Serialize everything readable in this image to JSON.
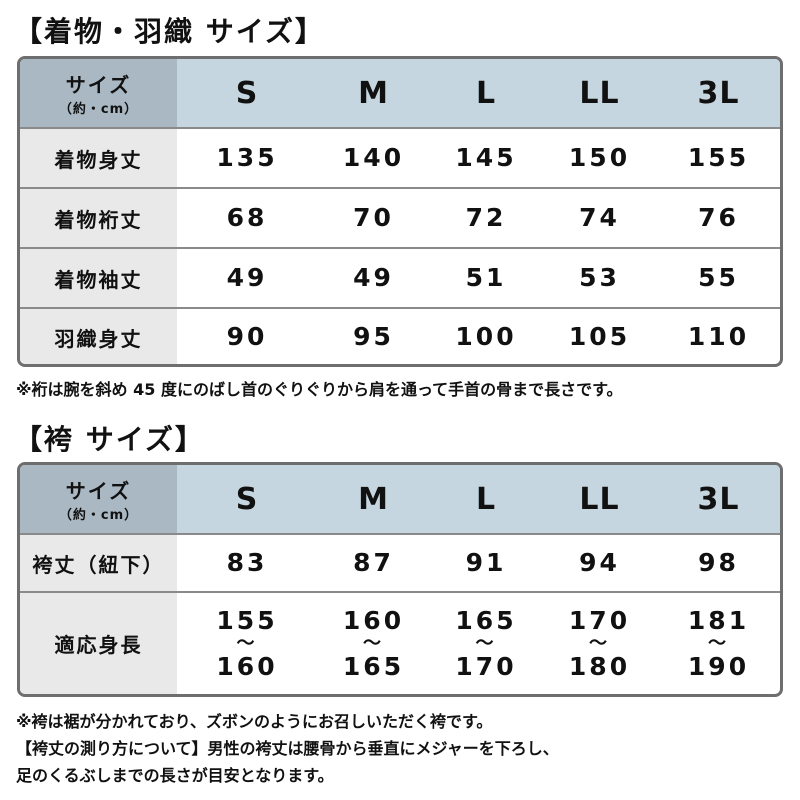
{
  "kimono": {
    "title": "【着物・羽織 サイズ】",
    "header": {
      "label": "サイズ",
      "unit": "（約・cm）",
      "sizes": [
        "S",
        "M",
        "L",
        "LL",
        "3L"
      ]
    },
    "rows": [
      {
        "label": "着物身丈",
        "values": [
          "135",
          "140",
          "145",
          "150",
          "155"
        ]
      },
      {
        "label": "着物裄丈",
        "values": [
          "68",
          "70",
          "72",
          "74",
          "76"
        ]
      },
      {
        "label": "着物袖丈",
        "values": [
          "49",
          "49",
          "51",
          "53",
          "55"
        ]
      },
      {
        "label": "羽織身丈",
        "values": [
          "90",
          "95",
          "100",
          "105",
          "110"
        ]
      }
    ],
    "note": "※裄は腕を斜め 45 度にのばし首のぐりぐりから肩を通って手首の骨まで長さです。"
  },
  "hakama": {
    "title": "【袴 サイズ】",
    "header": {
      "label": "サイズ",
      "unit": "（約・cm）",
      "sizes": [
        "S",
        "M",
        "L",
        "LL",
        "3L"
      ]
    },
    "length": {
      "label": "袴丈（紐下）",
      "values": [
        "83",
        "87",
        "91",
        "94",
        "98"
      ]
    },
    "height": {
      "label": "適応身長",
      "tilde": "〜",
      "from": [
        "155",
        "160",
        "165",
        "170",
        "181"
      ],
      "to": [
        "160",
        "165",
        "170",
        "180",
        "190"
      ]
    },
    "notes": [
      "※袴は裾が分かれており、ズボンのようにお召しいただく袴です。",
      "【袴丈の測り方について】男性の袴丈は腰骨から垂直にメジャーを下ろし、",
      "足のくるぶしまでの長さが目安となります。"
    ]
  }
}
